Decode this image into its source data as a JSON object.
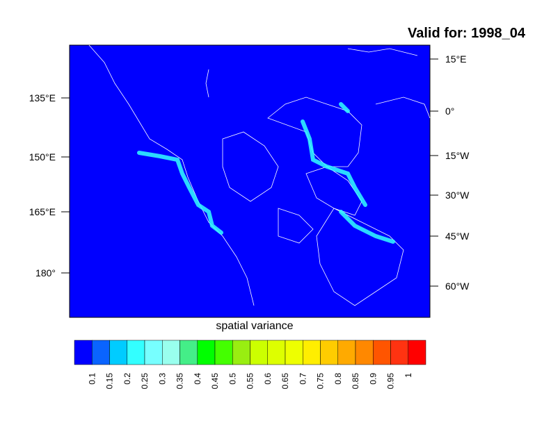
{
  "title": "Valid for: 1998_04",
  "left_labels": [
    "135°E",
    "150°E",
    "165°E",
    "180°"
  ],
  "right_labels": [
    "15°E",
    "0°",
    "15°W",
    "30°W",
    "45°W",
    "60°W"
  ],
  "x_label": "spatial variance",
  "colorbar": {
    "levels": [
      0.1,
      0.15,
      0.2,
      0.25,
      0.3,
      0.35,
      0.4,
      0.45,
      0.5,
      0.55,
      0.6,
      0.65,
      0.7,
      0.75,
      0.8,
      0.85,
      0.9,
      0.95,
      1
    ],
    "colors": [
      "#0000ff",
      "#0a64ff",
      "#00ccff",
      "#33ffff",
      "#77ffff",
      "#99ffee",
      "#44ee88",
      "#00ff00",
      "#44ff00",
      "#99ee11",
      "#ccff00",
      "#ddff00",
      "#eeff00",
      "#ffee00",
      "#ffcc00",
      "#ffaa00",
      "#ff8800",
      "#ff5500",
      "#ff3311",
      "#ff0000"
    ]
  }
}
